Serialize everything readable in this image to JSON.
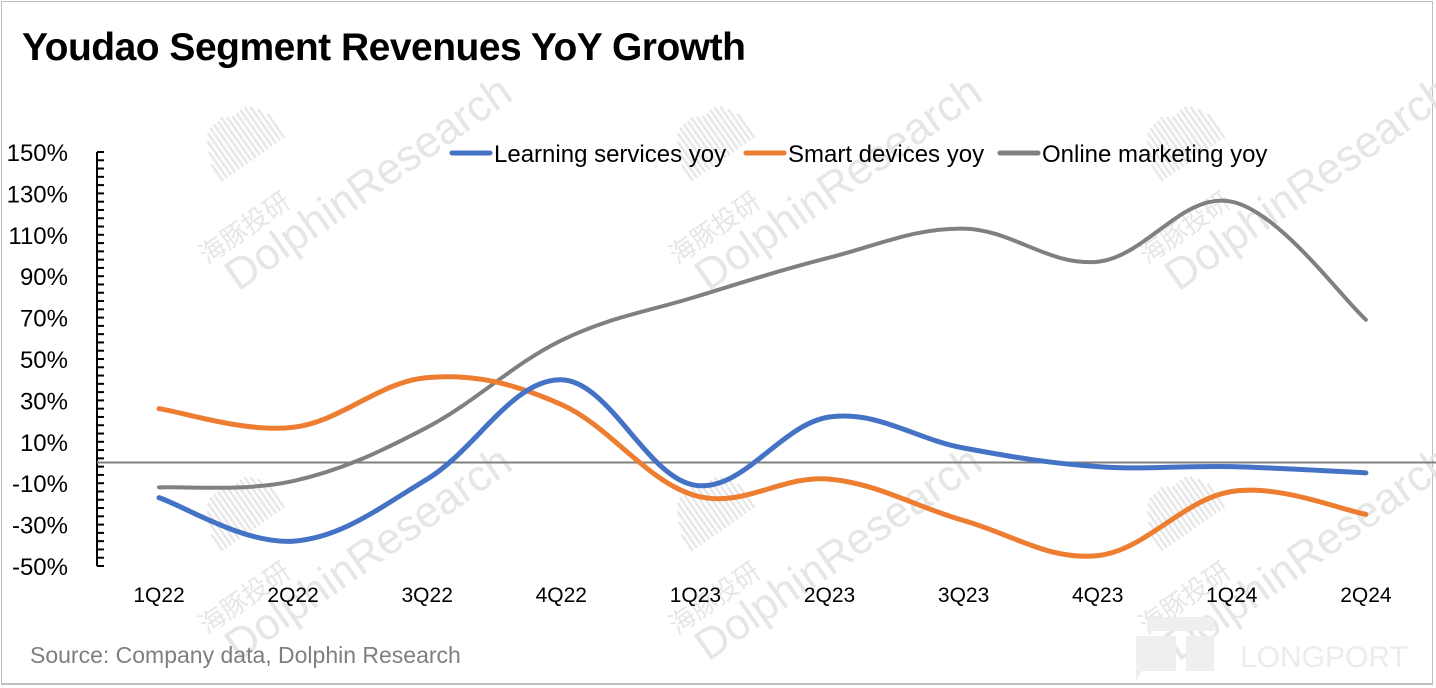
{
  "title": "Youdao Segment Revenues YoY Growth",
  "source": "Source: Company data, Dolphin Research",
  "watermark": {
    "cn": "海豚投研",
    "en": "DolphinResearch",
    "brand": "LONGPORT"
  },
  "chart_data": {
    "type": "line",
    "title": "Youdao Segment Revenues YoY Growth",
    "xlabel": "",
    "ylabel": "",
    "categories": [
      "1Q22",
      "2Q22",
      "3Q22",
      "4Q22",
      "1Q23",
      "2Q23",
      "3Q23",
      "4Q23",
      "1Q24",
      "2Q24"
    ],
    "ylim": [
      -50,
      150
    ],
    "yticks": [
      150,
      130,
      110,
      90,
      70,
      50,
      30,
      10,
      -10,
      -30,
      -50
    ],
    "ytick_labels": [
      "150%",
      "130%",
      "110%",
      "90%",
      "70%",
      "50%",
      "30%",
      "10%",
      "-10%",
      "-30%",
      "-50%"
    ],
    "y_unit": "%",
    "grid": false,
    "smooth": true,
    "legend_position": "top-right",
    "series": [
      {
        "name": "Learning services yoy",
        "color": "#4472c4",
        "values": [
          -17,
          -38,
          -8,
          40,
          -11,
          22,
          7,
          -2,
          -2,
          -5
        ]
      },
      {
        "name": "Smart devices yoy",
        "color": "#ed7d31",
        "values": [
          26,
          17,
          41,
          28,
          -16,
          -8,
          -28,
          -45,
          -14,
          -25
        ]
      },
      {
        "name": "Online marketing yoy",
        "color": "#808080",
        "values": [
          -12,
          -9,
          17,
          59,
          80,
          99,
          113,
          97,
          126,
          69
        ]
      }
    ]
  }
}
